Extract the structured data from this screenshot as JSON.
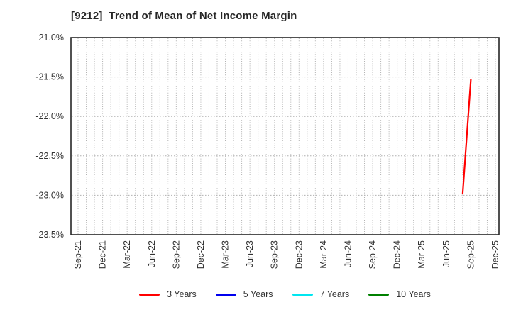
{
  "chart_data": {
    "type": "line",
    "title": "[9212]  Trend of Mean of Net Income Margin",
    "title_color": "#262626",
    "x_axis": {
      "unit": "month",
      "monthly_slots": 52,
      "label_every_n_months": 3,
      "tick_labels": [
        "Sep-21",
        "Dec-21",
        "Mar-22",
        "Jun-22",
        "Sep-22",
        "Dec-22",
        "Mar-23",
        "Jun-23",
        "Sep-23",
        "Dec-23",
        "Mar-24",
        "Jun-24",
        "Sep-24",
        "Dec-24",
        "Mar-25",
        "Jun-25",
        "Sep-25",
        "Dec-25"
      ]
    },
    "y_axis": {
      "ylim_top": -21.0,
      "ylim_bottom": -23.5,
      "ticks": [
        {
          "label": "-21.0%",
          "value": -21.0
        },
        {
          "label": "-21.5%",
          "value": -21.5
        },
        {
          "label": "-22.0%",
          "value": -22.0
        },
        {
          "label": "-22.5%",
          "value": -22.5
        },
        {
          "label": "-23.0%",
          "value": -23.0
        },
        {
          "label": "-23.5%",
          "value": -23.5
        }
      ]
    },
    "grid": {
      "style": "dotted",
      "color": "#b0b0b0",
      "border_color": "#262626"
    },
    "series": [
      {
        "name": "3 Years",
        "color": "#ff0000",
        "points": [
          {
            "label": "Aug-25",
            "month_index": 47,
            "value": -22.98
          },
          {
            "label": "Sep-25",
            "month_index": 48,
            "value": -21.53
          }
        ]
      },
      {
        "name": "5 Years",
        "color": "#0000ee",
        "points": []
      },
      {
        "name": "7 Years",
        "color": "#00e6f0",
        "points": []
      },
      {
        "name": "10 Years",
        "color": "#008000",
        "points": []
      }
    ],
    "legend": {
      "position": "bottom"
    },
    "text_color": "#333333"
  }
}
